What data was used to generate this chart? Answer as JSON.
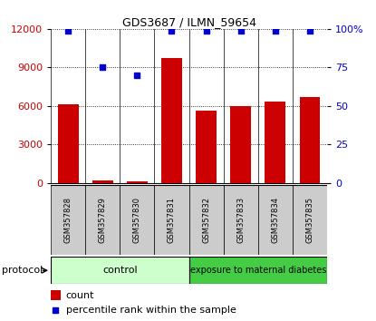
{
  "title": "GDS3687 / ILMN_59654",
  "samples": [
    "GSM357828",
    "GSM357829",
    "GSM357830",
    "GSM357831",
    "GSM357832",
    "GSM357833",
    "GSM357834",
    "GSM357835"
  ],
  "counts": [
    6150,
    200,
    150,
    9700,
    5650,
    6000,
    6350,
    6700
  ],
  "percentile_ranks": [
    99,
    75,
    70,
    99,
    99,
    99,
    99,
    99
  ],
  "ylim_left": [
    0,
    12000
  ],
  "ylim_right": [
    0,
    100
  ],
  "yticks_left": [
    0,
    3000,
    6000,
    9000,
    12000
  ],
  "yticks_right": [
    0,
    25,
    50,
    75,
    100
  ],
  "bar_color": "#CC0000",
  "dot_color": "#0000CC",
  "ctrl_n": 4,
  "treat_n": 4,
  "control_label": "control",
  "treatment_label": "exposure to maternal diabetes",
  "control_color": "#CCFFCC",
  "treatment_color": "#44CC44",
  "protocol_label": "protocol",
  "legend_count_label": "count",
  "legend_pct_label": "percentile rank within the sample",
  "tick_bg_color": "#CCCCCC",
  "bar_width": 0.6
}
